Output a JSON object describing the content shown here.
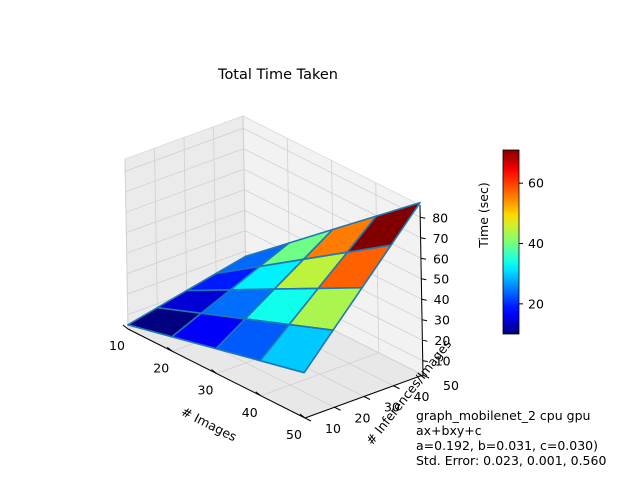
{
  "chart_data": {
    "type": "surface3d",
    "title": "Total Time Taken",
    "xlabel": "# Images",
    "ylabel": "# Inferences/Images",
    "zlabel": "Time (sec)",
    "x_grid": [
      10,
      20,
      30,
      40,
      50
    ],
    "y_grid": [
      10,
      20,
      30,
      40,
      50
    ],
    "x_ticks": [
      10,
      20,
      30,
      40,
      50
    ],
    "y_ticks": [
      10,
      20,
      30,
      40,
      50
    ],
    "z_ticks": [
      10,
      20,
      30,
      40,
      50,
      60,
      70,
      80
    ],
    "xlim": [
      10,
      50
    ],
    "ylim": [
      10,
      50
    ],
    "zlim": [
      3,
      86
    ],
    "model": {
      "a": 0.192,
      "b": 0.031,
      "c": 0.03
    },
    "colorbar": {
      "colormap": "jet",
      "range": [
        10,
        71
      ],
      "ticks": [
        20,
        40,
        60
      ]
    },
    "edge_color": "#1f77b4",
    "grid": true
  },
  "annotation": {
    "lines": [
      "graph_mobilenet_2 cpu gpu",
      "ax+bxy+c",
      "a=0.192, b=0.031, c=0.030)",
      "Std. Error: 0.023, 0.001, 0.560"
    ]
  }
}
